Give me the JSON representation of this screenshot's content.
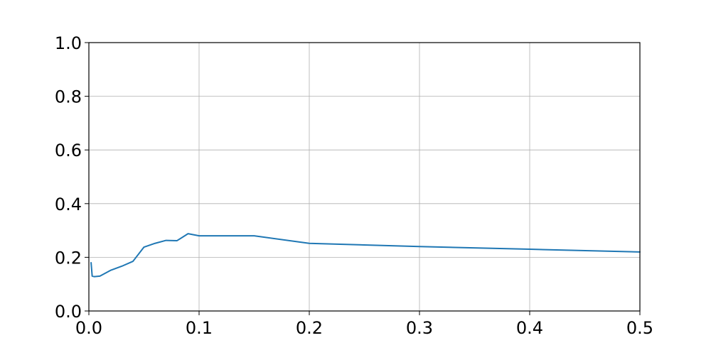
{
  "chart_data": {
    "type": "line",
    "title": "",
    "xlabel": "",
    "ylabel": "",
    "xlim": [
      0.0,
      0.5
    ],
    "ylim": [
      0.0,
      1.0
    ],
    "grid": true,
    "x_ticks": [
      0.0,
      0.1,
      0.2,
      0.3,
      0.4,
      0.5
    ],
    "x_tick_labels": [
      "0.0",
      "0.1",
      "0.2",
      "0.3",
      "0.4",
      "0.5"
    ],
    "y_ticks": [
      0.0,
      0.2,
      0.4,
      0.6,
      0.8,
      1.0
    ],
    "y_tick_labels": [
      "0.0",
      "0.2",
      "0.4",
      "0.6",
      "0.8",
      "1.0"
    ],
    "series": [
      {
        "color": "#1f77b4",
        "x": [
          0.002,
          0.003,
          0.005,
          0.01,
          0.02,
          0.03,
          0.04,
          0.05,
          0.06,
          0.07,
          0.08,
          0.09,
          0.1,
          0.15,
          0.2,
          0.3,
          0.4,
          0.5
        ],
        "y": [
          0.18,
          0.13,
          0.128,
          0.13,
          0.152,
          0.167,
          0.185,
          0.238,
          0.252,
          0.263,
          0.262,
          0.288,
          0.28,
          0.28,
          0.252,
          0.24,
          0.23,
          0.22
        ]
      }
    ]
  }
}
